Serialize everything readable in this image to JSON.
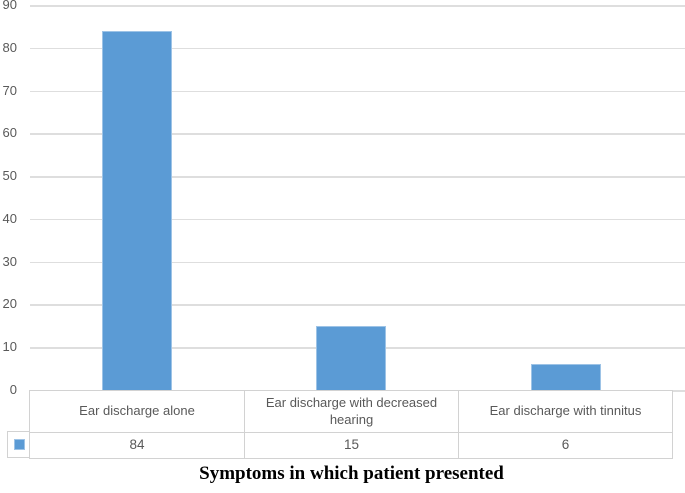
{
  "chart_data": {
    "type": "bar",
    "title": "Symptoms in which patient presented",
    "categories": [
      "Ear discharge alone",
      "Ear discharge with decreased hearing",
      "Ear discharge with tinnitus"
    ],
    "values": [
      84,
      15,
      6
    ],
    "yticks": [
      90,
      80,
      70,
      60,
      50,
      40,
      30,
      20,
      10,
      0
    ],
    "ylim": [
      0,
      90
    ],
    "grid": true,
    "legend_position": "data-table-left-swatch",
    "xlabel": "",
    "ylabel": "",
    "colors": {
      "bar_fill": "#5b9bd5",
      "bar_border": "#9dc3e6",
      "gridline": "#dedede",
      "table_border": "#d2d2d2",
      "axis_text": "#595959",
      "title_text": "#000000"
    }
  }
}
